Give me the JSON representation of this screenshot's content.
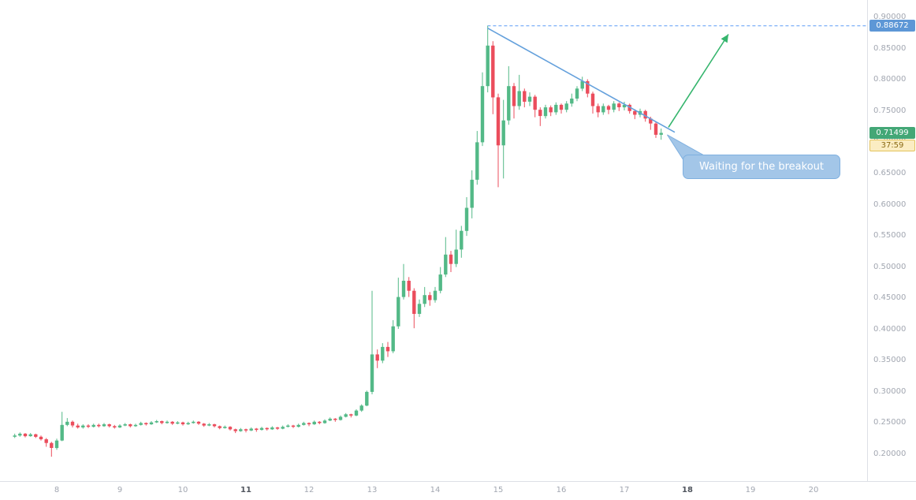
{
  "chart_data": {
    "type": "candlestick",
    "t_start": 7.3333,
    "t_step": 0.0833333,
    "t_range": [
      7.1,
      20.85
    ],
    "p_range": [
      0.157,
      0.928
    ],
    "grid": "off",
    "price_ticks": [
      {
        "v": 0.9,
        "label": "0.90000"
      },
      {
        "v": 0.85,
        "label": "0.85000"
      },
      {
        "v": 0.8,
        "label": "0.80000"
      },
      {
        "v": 0.75,
        "label": "0.75000"
      },
      {
        "v": 0.7,
        "label": "0.70000"
      },
      {
        "v": 0.65,
        "label": "0.65000"
      },
      {
        "v": 0.6,
        "label": "0.60000"
      },
      {
        "v": 0.55,
        "label": "0.55000"
      },
      {
        "v": 0.5,
        "label": "0.50000"
      },
      {
        "v": 0.45,
        "label": "0.45000"
      },
      {
        "v": 0.4,
        "label": "0.40000"
      },
      {
        "v": 0.35,
        "label": "0.35000"
      },
      {
        "v": 0.3,
        "label": "0.30000"
      },
      {
        "v": 0.25,
        "label": "0.25000"
      },
      {
        "v": 0.2,
        "label": "0.20000"
      }
    ],
    "time_ticks": [
      {
        "t": 8,
        "label": "8",
        "bold": false
      },
      {
        "t": 9,
        "label": "9",
        "bold": false
      },
      {
        "t": 10,
        "label": "10",
        "bold": false
      },
      {
        "t": 11,
        "label": "11",
        "bold": true
      },
      {
        "t": 12,
        "label": "12",
        "bold": false
      },
      {
        "t": 13,
        "label": "13",
        "bold": false
      },
      {
        "t": 14,
        "label": "14",
        "bold": false
      },
      {
        "t": 15,
        "label": "15",
        "bold": false
      },
      {
        "t": 16,
        "label": "16",
        "bold": false
      },
      {
        "t": 17,
        "label": "17",
        "bold": false
      },
      {
        "t": 18,
        "label": "18",
        "bold": true
      },
      {
        "t": 19,
        "label": "19",
        "bold": false
      },
      {
        "t": 20,
        "label": "20",
        "bold": false
      }
    ],
    "candles": [
      [
        0.228,
        0.233,
        0.226,
        0.23
      ],
      [
        0.23,
        0.235,
        0.228,
        0.233
      ],
      [
        0.233,
        0.234,
        0.227,
        0.229
      ],
      [
        0.229,
        0.234,
        0.228,
        0.232
      ],
      [
        0.232,
        0.233,
        0.226,
        0.228
      ],
      [
        0.228,
        0.23,
        0.222,
        0.224
      ],
      [
        0.224,
        0.226,
        0.212,
        0.218
      ],
      [
        0.218,
        0.22,
        0.196,
        0.21
      ],
      [
        0.21,
        0.225,
        0.207,
        0.222
      ],
      [
        0.222,
        0.268,
        0.221,
        0.247
      ],
      [
        0.247,
        0.258,
        0.245,
        0.252
      ],
      [
        0.252,
        0.254,
        0.243,
        0.246
      ],
      [
        0.246,
        0.249,
        0.241,
        0.243
      ],
      [
        0.243,
        0.248,
        0.241,
        0.246
      ],
      [
        0.246,
        0.248,
        0.242,
        0.244
      ],
      [
        0.244,
        0.249,
        0.243,
        0.247
      ],
      [
        0.247,
        0.249,
        0.243,
        0.245
      ],
      [
        0.245,
        0.25,
        0.244,
        0.248
      ],
      [
        0.248,
        0.249,
        0.243,
        0.245
      ],
      [
        0.245,
        0.247,
        0.241,
        0.243
      ],
      [
        0.243,
        0.248,
        0.242,
        0.246
      ],
      [
        0.246,
        0.25,
        0.245,
        0.248
      ],
      [
        0.248,
        0.249,
        0.243,
        0.245
      ],
      [
        0.245,
        0.249,
        0.244,
        0.247
      ],
      [
        0.247,
        0.252,
        0.246,
        0.25
      ],
      [
        0.25,
        0.251,
        0.246,
        0.248
      ],
      [
        0.248,
        0.253,
        0.247,
        0.251
      ],
      [
        0.251,
        0.255,
        0.25,
        0.253
      ],
      [
        0.253,
        0.254,
        0.248,
        0.25
      ],
      [
        0.25,
        0.254,
        0.249,
        0.252
      ],
      [
        0.252,
        0.253,
        0.247,
        0.249
      ],
      [
        0.249,
        0.253,
        0.248,
        0.251
      ],
      [
        0.251,
        0.252,
        0.246,
        0.248
      ],
      [
        0.248,
        0.252,
        0.247,
        0.25
      ],
      [
        0.25,
        0.254,
        0.249,
        0.252
      ],
      [
        0.252,
        0.253,
        0.247,
        0.249
      ],
      [
        0.249,
        0.25,
        0.244,
        0.246
      ],
      [
        0.246,
        0.25,
        0.245,
        0.248
      ],
      [
        0.248,
        0.249,
        0.243,
        0.245
      ],
      [
        0.245,
        0.246,
        0.24,
        0.242
      ],
      [
        0.242,
        0.246,
        0.241,
        0.244
      ],
      [
        0.244,
        0.245,
        0.238,
        0.24
      ],
      [
        0.24,
        0.241,
        0.234,
        0.237
      ],
      [
        0.237,
        0.242,
        0.236,
        0.24
      ],
      [
        0.24,
        0.241,
        0.235,
        0.238
      ],
      [
        0.238,
        0.243,
        0.237,
        0.241
      ],
      [
        0.241,
        0.242,
        0.236,
        0.239
      ],
      [
        0.239,
        0.244,
        0.238,
        0.242
      ],
      [
        0.242,
        0.243,
        0.238,
        0.24
      ],
      [
        0.24,
        0.245,
        0.239,
        0.243
      ],
      [
        0.243,
        0.244,
        0.239,
        0.241
      ],
      [
        0.241,
        0.246,
        0.24,
        0.244
      ],
      [
        0.244,
        0.248,
        0.243,
        0.246
      ],
      [
        0.246,
        0.247,
        0.242,
        0.244
      ],
      [
        0.244,
        0.249,
        0.243,
        0.247
      ],
      [
        0.247,
        0.252,
        0.246,
        0.25
      ],
      [
        0.25,
        0.251,
        0.245,
        0.248
      ],
      [
        0.248,
        0.254,
        0.247,
        0.252
      ],
      [
        0.252,
        0.253,
        0.248,
        0.25
      ],
      [
        0.25,
        0.256,
        0.249,
        0.254
      ],
      [
        0.254,
        0.259,
        0.253,
        0.257
      ],
      [
        0.257,
        0.258,
        0.252,
        0.255
      ],
      [
        0.255,
        0.262,
        0.254,
        0.26
      ],
      [
        0.26,
        0.266,
        0.259,
        0.264
      ],
      [
        0.264,
        0.265,
        0.259,
        0.262
      ],
      [
        0.262,
        0.272,
        0.261,
        0.27
      ],
      [
        0.27,
        0.28,
        0.268,
        0.278
      ],
      [
        0.278,
        0.302,
        0.277,
        0.3
      ],
      [
        0.3,
        0.462,
        0.296,
        0.36
      ],
      [
        0.36,
        0.368,
        0.338,
        0.35
      ],
      [
        0.35,
        0.378,
        0.346,
        0.372
      ],
      [
        0.372,
        0.38,
        0.356,
        0.365
      ],
      [
        0.365,
        0.415,
        0.362,
        0.405
      ],
      [
        0.405,
        0.483,
        0.401,
        0.452
      ],
      [
        0.452,
        0.505,
        0.448,
        0.478
      ],
      [
        0.478,
        0.484,
        0.452,
        0.462
      ],
      [
        0.462,
        0.466,
        0.402,
        0.425
      ],
      [
        0.425,
        0.448,
        0.42,
        0.441
      ],
      [
        0.441,
        0.468,
        0.436,
        0.455
      ],
      [
        0.455,
        0.46,
        0.438,
        0.447
      ],
      [
        0.447,
        0.468,
        0.443,
        0.462
      ],
      [
        0.462,
        0.5,
        0.458,
        0.488
      ],
      [
        0.488,
        0.548,
        0.484,
        0.52
      ],
      [
        0.52,
        0.526,
        0.492,
        0.505
      ],
      [
        0.505,
        0.56,
        0.5,
        0.528
      ],
      [
        0.528,
        0.566,
        0.515,
        0.558
      ],
      [
        0.558,
        0.612,
        0.55,
        0.595
      ],
      [
        0.595,
        0.655,
        0.578,
        0.64
      ],
      [
        0.64,
        0.718,
        0.632,
        0.7
      ],
      [
        0.7,
        0.812,
        0.694,
        0.79
      ],
      [
        0.79,
        0.88672,
        0.78,
        0.855
      ],
      [
        0.855,
        0.862,
        0.745,
        0.772
      ],
      [
        0.772,
        0.778,
        0.628,
        0.695
      ],
      [
        0.695,
        0.768,
        0.642,
        0.735
      ],
      [
        0.735,
        0.822,
        0.728,
        0.79
      ],
      [
        0.79,
        0.795,
        0.738,
        0.758
      ],
      [
        0.758,
        0.808,
        0.752,
        0.782
      ],
      [
        0.782,
        0.786,
        0.756,
        0.765
      ],
      [
        0.765,
        0.78,
        0.758,
        0.773
      ],
      [
        0.773,
        0.776,
        0.74,
        0.752
      ],
      [
        0.752,
        0.756,
        0.726,
        0.742
      ],
      [
        0.742,
        0.76,
        0.738,
        0.756
      ],
      [
        0.756,
        0.759,
        0.742,
        0.748
      ],
      [
        0.748,
        0.764,
        0.744,
        0.76
      ],
      [
        0.76,
        0.762,
        0.746,
        0.752
      ],
      [
        0.752,
        0.766,
        0.748,
        0.762
      ],
      [
        0.762,
        0.778,
        0.757,
        0.77
      ],
      [
        0.77,
        0.79,
        0.766,
        0.786
      ],
      [
        0.786,
        0.805,
        0.782,
        0.798
      ],
      [
        0.798,
        0.801,
        0.772,
        0.778
      ],
      [
        0.778,
        0.781,
        0.746,
        0.758
      ],
      [
        0.758,
        0.762,
        0.74,
        0.748
      ],
      [
        0.748,
        0.762,
        0.744,
        0.758
      ],
      [
        0.758,
        0.76,
        0.745,
        0.752
      ],
      [
        0.752,
        0.766,
        0.748,
        0.762
      ],
      [
        0.762,
        0.764,
        0.75,
        0.756
      ],
      [
        0.756,
        0.765,
        0.751,
        0.76
      ],
      [
        0.76,
        0.762,
        0.746,
        0.75
      ],
      [
        0.75,
        0.753,
        0.737,
        0.744
      ],
      [
        0.744,
        0.754,
        0.74,
        0.75
      ],
      [
        0.75,
        0.752,
        0.733,
        0.738
      ],
      [
        0.738,
        0.741,
        0.72,
        0.73
      ],
      [
        0.73,
        0.733,
        0.707,
        0.712
      ],
      [
        0.712,
        0.722,
        0.704,
        0.71499
      ]
    ],
    "overlays": {
      "level_line": {
        "price": 0.88672,
        "t_start": 14.83,
        "label": "0.88672"
      },
      "trendline": {
        "t1": 14.83,
        "p1": 0.883,
        "t2": 17.8,
        "p2": 0.716
      },
      "arrow": {
        "t1": 17.7,
        "p1": 0.724,
        "t2": 18.65,
        "p2": 0.873
      },
      "callout": {
        "text": "Waiting for the breakout",
        "anchor_t": 17.68,
        "anchor_p": 0.712
      }
    }
  },
  "price_scale": {
    "level_label": "0.88672",
    "last_price": "0.71499",
    "countdown": "37:59"
  },
  "colors": {
    "up": "#53b987",
    "down": "#eb4d5c",
    "trendline": "#64a0dc",
    "level": "#5b9cf6",
    "arrow": "#35b56d",
    "callout_fill": "#a3c6e8",
    "callout_border": "#7fb0e0",
    "callout_text": "#ffffff",
    "price_tag_bg": "#43a776",
    "level_tag_bg": "#5d97d6",
    "countdown_bg": "#fbedc3",
    "countdown_border": "#e3c35c",
    "countdown_text": "#8a6914"
  }
}
